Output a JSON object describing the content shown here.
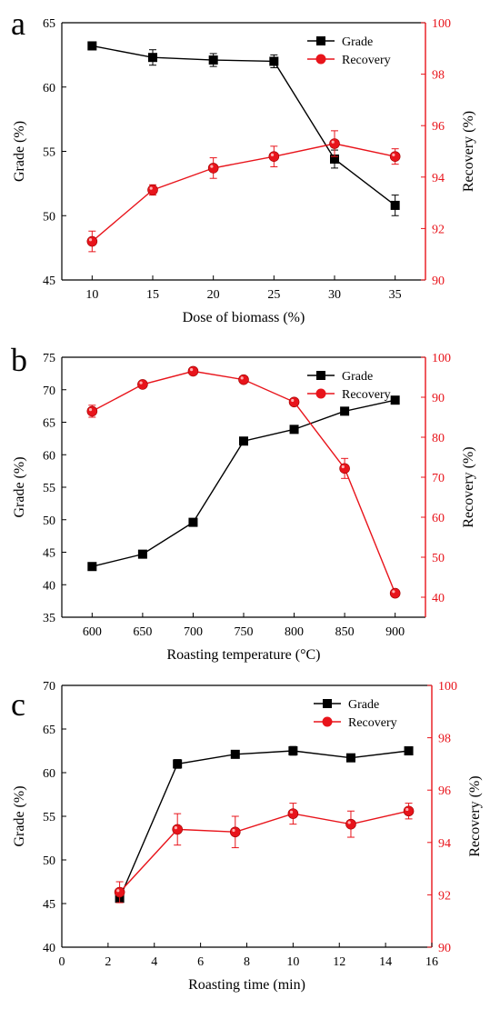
{
  "panels": [
    {
      "letter": "a"
    },
    {
      "letter": "b"
    },
    {
      "letter": "c"
    }
  ],
  "colors": {
    "grade": "#000000",
    "recovery": "#e8141b",
    "axis": "#000000"
  },
  "chart_data": [
    {
      "type": "line",
      "panel": "a",
      "xlabel": "Dose of biomass (%)",
      "ylabel": "Grade (%)",
      "y2label": "Recovery (%)",
      "xlim": [
        7.5,
        37.5
      ],
      "ylim": [
        45,
        65
      ],
      "y2lim": [
        90,
        100
      ],
      "xticks": [
        10,
        15,
        20,
        25,
        30,
        35
      ],
      "yticks": [
        45,
        50,
        55,
        60,
        65
      ],
      "y2ticks": [
        90,
        92,
        94,
        96,
        98,
        100
      ],
      "x": [
        10,
        15,
        20,
        25,
        30,
        35
      ],
      "legend_position": "top-right",
      "series": [
        {
          "name": "Grade",
          "axis": "left",
          "marker": "square",
          "values": [
            63.2,
            62.3,
            62.1,
            62.0,
            54.4,
            50.8
          ],
          "errors": [
            0.3,
            0.6,
            0.5,
            0.5,
            0.7,
            0.8
          ]
        },
        {
          "name": "Recovery",
          "axis": "right",
          "marker": "circle",
          "values": [
            91.5,
            93.5,
            94.35,
            94.8,
            95.3,
            94.8
          ],
          "errors": [
            0.4,
            0.2,
            0.4,
            0.4,
            0.5,
            0.3
          ]
        }
      ]
    },
    {
      "type": "line",
      "panel": "b",
      "xlabel": "Roasting temperature (°C)",
      "ylabel": "Grade (%)",
      "y2label": "Recovery (%)",
      "xlim": [
        570,
        930
      ],
      "ylim": [
        35,
        75
      ],
      "y2lim": [
        35,
        100
      ],
      "xticks": [
        600,
        650,
        700,
        750,
        800,
        850,
        900
      ],
      "yticks": [
        35,
        40,
        45,
        50,
        55,
        60,
        65,
        70,
        75
      ],
      "y2ticks": [
        40,
        50,
        60,
        70,
        80,
        90,
        100
      ],
      "x": [
        600,
        650,
        700,
        750,
        800,
        850,
        900
      ],
      "legend_position": "top-right",
      "series": [
        {
          "name": "Grade",
          "axis": "left",
          "marker": "square",
          "values": [
            42.8,
            44.7,
            49.6,
            62.1,
            63.9,
            66.7,
            68.4
          ],
          "errors": [
            0,
            0,
            0,
            0,
            0,
            0,
            0
          ]
        },
        {
          "name": "Recovery",
          "axis": "right",
          "marker": "circle",
          "values": [
            86.5,
            93.2,
            96.5,
            94.4,
            88.8,
            72.2,
            41.0
          ],
          "errors": [
            1.5,
            0,
            0,
            0,
            0,
            2.5,
            0
          ]
        }
      ]
    },
    {
      "type": "line",
      "panel": "c",
      "xlabel": "Roasting time (min)",
      "ylabel": "Grade (%)",
      "y2label": "Recovery (%)",
      "xlim": [
        0,
        16
      ],
      "ylim": [
        40,
        70
      ],
      "y2lim": [
        90,
        100
      ],
      "xticks": [
        0,
        2,
        4,
        6,
        8,
        10,
        12,
        14,
        16
      ],
      "yticks": [
        40,
        45,
        50,
        55,
        60,
        65,
        70
      ],
      "y2ticks": [
        90,
        92,
        94,
        96,
        98,
        100
      ],
      "x": [
        2.5,
        5,
        7.5,
        10,
        12.5,
        15
      ],
      "legend_position": "top-right",
      "series": [
        {
          "name": "Grade",
          "axis": "left",
          "marker": "square",
          "values": [
            45.6,
            61.0,
            62.1,
            62.5,
            61.7,
            62.5
          ],
          "errors": [
            0.3,
            0.5,
            0.4,
            0.5,
            0.4,
            0.4
          ]
        },
        {
          "name": "Recovery",
          "axis": "right",
          "marker": "circle",
          "values": [
            92.1,
            94.5,
            94.4,
            95.1,
            94.7,
            95.2
          ],
          "errors": [
            0.4,
            0.6,
            0.6,
            0.4,
            0.5,
            0.3
          ]
        }
      ]
    }
  ]
}
